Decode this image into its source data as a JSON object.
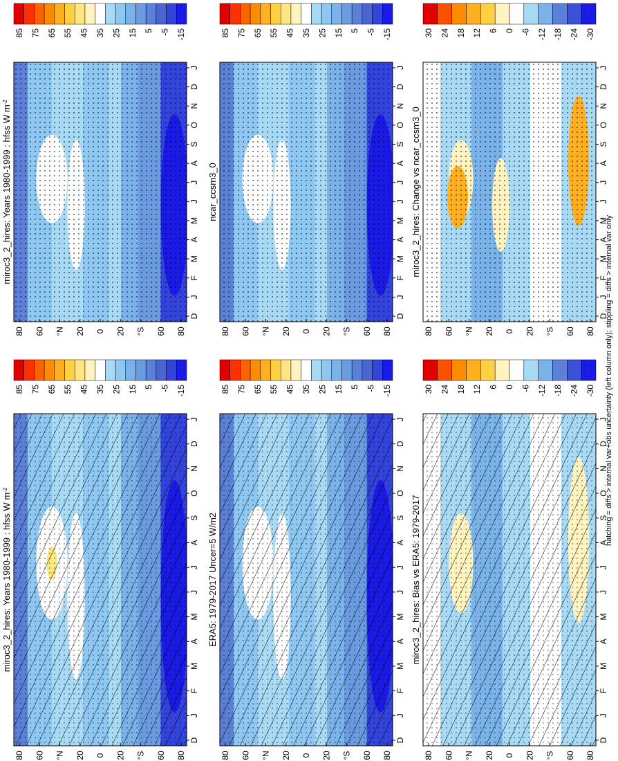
{
  "figure": {
    "footer": "hatching = diffs > internal var+obs uncertainty (left column only); stippling = diffs > internal var only",
    "colors": {
      "abs_scale": [
        "#1a1ae6",
        "#3344dd",
        "#4a64d2",
        "#5a80d8",
        "#6a9ae0",
        "#7ab2ea",
        "#8ec8f2",
        "#a8daf6",
        "#ffffff",
        "#fff3c0",
        "#ffe680",
        "#ffd040",
        "#ffb020",
        "#ff8c00",
        "#ff6000",
        "#ff3000",
        "#e00000"
      ],
      "diff_scale": [
        "#1a1ae6",
        "#3a50d8",
        "#5a80d8",
        "#7ab2ea",
        "#a8daf6",
        "#ffffff",
        "#fff3c0",
        "#ffd040",
        "#ffb020",
        "#ff8c00",
        "#ff5000",
        "#e00000"
      ]
    }
  },
  "chart_data": [
    {
      "id": "p1",
      "type": "heatmap",
      "title": "miroc3_2_hires: Years 1980-1999 : hfss W m",
      "title_sup": "-2",
      "x": [
        "D",
        "J",
        "F",
        "M",
        "A",
        "M",
        "J",
        "J",
        "A",
        "S",
        "O",
        "N",
        "D",
        "J"
      ],
      "y": [
        "80",
        "60",
        "°N",
        "20",
        "0",
        "20",
        "°S",
        "60",
        "80"
      ],
      "colorbar": {
        "labels": [
          "85",
          "75",
          "65",
          "55",
          "45",
          "35",
          "25",
          "15",
          "5",
          "-5",
          "-15"
        ]
      },
      "hatching": true,
      "stippling": true
    },
    {
      "id": "p2",
      "type": "heatmap",
      "title": "miroc3_2_hires: Years 1980-1999 : hfss W m",
      "title_sup": "-2",
      "x": [
        "D",
        "J",
        "F",
        "M",
        "A",
        "M",
        "J",
        "J",
        "A",
        "S",
        "O",
        "N",
        "D",
        "J"
      ],
      "y": [
        "80",
        "60",
        "°N",
        "20",
        "0",
        "20",
        "°S",
        "60",
        "80"
      ],
      "colorbar": {
        "labels": [
          "85",
          "75",
          "65",
          "55",
          "45",
          "35",
          "25",
          "15",
          "5",
          "-5",
          "-15"
        ]
      },
      "hatching": false,
      "stippling": true
    },
    {
      "id": "p3",
      "type": "heatmap",
      "title": "ERA5: 1979-2017 Uncer=5 W/m2",
      "title_sup": "",
      "x": [
        "D",
        "J",
        "F",
        "M",
        "A",
        "M",
        "J",
        "J",
        "A",
        "S",
        "O",
        "N",
        "D",
        "J"
      ],
      "y": [
        "80",
        "60",
        "°N",
        "20",
        "0",
        "20",
        "°S",
        "60",
        "80"
      ],
      "colorbar": {
        "labels": [
          "85",
          "75",
          "65",
          "55",
          "45",
          "35",
          "25",
          "15",
          "5",
          "-5",
          "-15"
        ]
      },
      "hatching": true,
      "stippling": true
    },
    {
      "id": "p4",
      "type": "heatmap",
      "title": "ncar_ccsm3_0",
      "title_sup": "",
      "x": [
        "D",
        "J",
        "F",
        "M",
        "A",
        "M",
        "J",
        "J",
        "A",
        "S",
        "O",
        "N",
        "D",
        "J"
      ],
      "y": [
        "80",
        "60",
        "°N",
        "20",
        "0",
        "20",
        "°S",
        "60",
        "80"
      ],
      "colorbar": {
        "labels": [
          "85",
          "75",
          "65",
          "55",
          "45",
          "35",
          "25",
          "15",
          "5",
          "-5",
          "-15"
        ]
      },
      "hatching": false,
      "stippling": true
    },
    {
      "id": "p5",
      "type": "heatmap",
      "title": "miroc3_2_hires: Bias vs ERA5: 1979-2017",
      "title_sup": "",
      "x": [
        "D",
        "J",
        "F",
        "M",
        "A",
        "M",
        "J",
        "J",
        "A",
        "S",
        "O",
        "N",
        "D",
        "J"
      ],
      "y": [
        "80",
        "60",
        "°N",
        "20",
        "0",
        "20",
        "°S",
        "60",
        "80"
      ],
      "colorbar": {
        "labels": [
          "30",
          "24",
          "18",
          "12",
          "6",
          "0",
          "-6",
          "-12",
          "-18",
          "-24",
          "-30"
        ]
      },
      "hatching": true,
      "stippling": true
    },
    {
      "id": "p6",
      "type": "heatmap",
      "title": "miroc3_2_hires: Change vs ncar_ccsm3_0",
      "title_sup": "",
      "x": [
        "D",
        "J",
        "F",
        "M",
        "A",
        "M",
        "J",
        "J",
        "A",
        "S",
        "O",
        "N",
        "D",
        "J"
      ],
      "y": [
        "80",
        "60",
        "°N",
        "20",
        "0",
        "20",
        "°S",
        "60",
        "80"
      ],
      "colorbar": {
        "labels": [
          "30",
          "24",
          "18",
          "12",
          "6",
          "0",
          "-6",
          "-12",
          "-18",
          "-24",
          "-30"
        ]
      },
      "hatching": false,
      "stippling": true
    }
  ]
}
